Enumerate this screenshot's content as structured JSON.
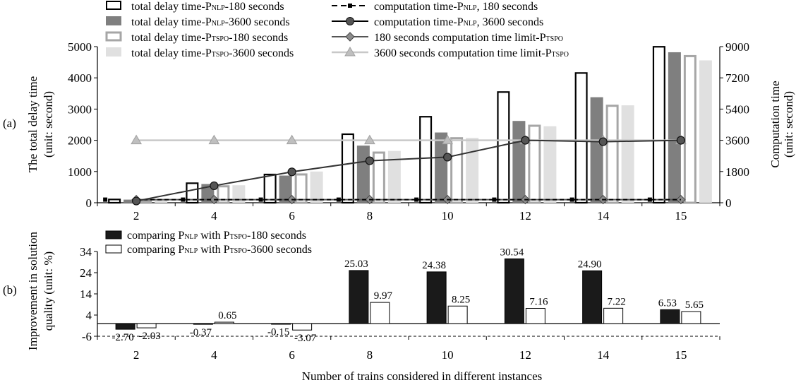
{
  "colors": {
    "axis": "#000000",
    "outline_bar": "#000000",
    "dark_gray": "#7f7f7f",
    "mid_gray": "#a6a6a6",
    "light_gray": "#e0e0e0",
    "line_nlp": "#333333",
    "limit_180": "#555555",
    "limit_3600": "#c8c8c8",
    "black_bar": "#1a1a1a",
    "marker_light": "#bfbfbf"
  },
  "x_title": "Number of trains considered in different instances",
  "panels": {
    "a": {
      "label": "(a)",
      "ylabel_line1": "The total delay time",
      "ylabel_line2": "(unit: second)",
      "y2label_line1": "Computation time",
      "y2label_line2": "(unit: second)"
    },
    "b": {
      "label": "(b)",
      "ylabel_line1": "Improvement in solution",
      "ylabel_line2": "quality (unit: %)"
    }
  },
  "legend_a": [
    {
      "pre": "total delay time-P",
      "sub": "NLP",
      "post": "-180 seconds",
      "symbol": "outline-bar"
    },
    {
      "pre": "total delay time-P",
      "sub": "NLP",
      "post": "-3600 seconds",
      "symbol": "dark-bar"
    },
    {
      "pre": "total delay time-P",
      "sub": "TSPO",
      "post": "-180 seconds",
      "symbol": "gray-outline-bar"
    },
    {
      "pre": "total delay time-P",
      "sub": "TSPO",
      "post": "-3600 seconds",
      "symbol": "light-bar"
    },
    {
      "pre": "computation time-P",
      "sub": "NLP",
      "post": ", 180 seconds",
      "symbol": "dash-square"
    },
    {
      "pre": "computation time-P",
      "sub": "NLP",
      "post": ", 3600 seconds",
      "symbol": "line-circle"
    },
    {
      "pre": "180 seconds computation time limit-P",
      "sub": "TSPO",
      "post": "",
      "symbol": "line-diamond"
    },
    {
      "pre": "3600 seconds computation time limit-P",
      "sub": "TSPO",
      "post": "",
      "symbol": "line-triangle"
    }
  ],
  "legend_b": [
    {
      "pre": "comparing P",
      "sub": "NLP",
      "mid": " with P",
      "sub2": "TSPO",
      "post": "-180 seconds",
      "symbol": "black-bar"
    },
    {
      "pre": "comparing P",
      "sub": "NLP",
      "mid": " with P",
      "sub2": "TSPO",
      "post": "-3600 seconds",
      "symbol": "white-bar"
    }
  ],
  "chart_data": [
    {
      "type": "bar",
      "panel": "a",
      "categories": [
        "2",
        "4",
        "6",
        "8",
        "10",
        "12",
        "14",
        "15"
      ],
      "ylim": [
        0,
        5000
      ],
      "yticks": [
        0,
        1000,
        2000,
        3000,
        4000,
        5000
      ],
      "y2lim": [
        0,
        9000
      ],
      "y2ticks": [
        0,
        1800,
        3600,
        5400,
        7200,
        9000
      ],
      "grid": false,
      "series": [
        {
          "name": "total delay time-PNLP-180 seconds",
          "values": [
            130,
            650,
            930,
            2220,
            2780,
            3570,
            4180,
            5020
          ]
        },
        {
          "name": "total delay time-PNLP-3600 seconds",
          "values": [
            100,
            600,
            870,
            1830,
            2250,
            2620,
            3380,
            4820
          ]
        },
        {
          "name": "total delay time-PTSPO-180 seconds",
          "values": [
            100,
            560,
            940,
            1640,
            2100,
            2500,
            3140,
            4730
          ]
        },
        {
          "name": "total delay time-PTSPO-3600 seconds",
          "values": [
            100,
            560,
            1000,
            1660,
            2080,
            2450,
            3120,
            4560
          ]
        }
      ],
      "line_series": [
        {
          "name": "computation time-PNLP, 180 seconds",
          "axis": "right",
          "values": [
            180,
            180,
            180,
            180,
            180,
            180,
            180,
            180
          ]
        },
        {
          "name": "computation time-PNLP, 3600 seconds",
          "axis": "right",
          "values": [
            100,
            980,
            1780,
            2420,
            2630,
            3600,
            3520,
            3600
          ]
        },
        {
          "name": "180 seconds computation time limit-PTSPO",
          "axis": "right",
          "values": [
            180,
            180,
            180,
            180,
            180,
            180,
            180,
            180
          ]
        },
        {
          "name": "3600 seconds computation time limit-PTSPO",
          "axis": "right",
          "values": [
            3600,
            3600,
            3600,
            3600,
            3600,
            3600,
            3600,
            3600
          ]
        }
      ]
    },
    {
      "type": "bar",
      "panel": "b",
      "categories": [
        "2",
        "4",
        "6",
        "8",
        "10",
        "12",
        "14",
        "15"
      ],
      "ylim": [
        -6,
        34
      ],
      "yticks": [
        -6,
        4,
        14,
        24,
        34
      ],
      "grid": false,
      "series": [
        {
          "name": "comparing PNLP with PTSPO-180 seconds",
          "values": [
            -2.7,
            -0.37,
            -0.15,
            25.03,
            24.38,
            30.54,
            24.9,
            6.53
          ]
        },
        {
          "name": "comparing PNLP with PTSPO-3600 seconds",
          "values": [
            -2.03,
            0.65,
            -3.07,
            9.97,
            8.25,
            7.16,
            7.22,
            5.65
          ]
        }
      ],
      "labels_180": [
        "-2.70",
        "-0.37",
        "-0.15",
        "25.03",
        "24.38",
        "30.54",
        "24.90",
        "6.53"
      ],
      "labels_3600": [
        "-2.03",
        "0.65",
        "-3.07",
        "9.97",
        "8.25",
        "7.16",
        "7.22",
        "5.65"
      ]
    }
  ]
}
